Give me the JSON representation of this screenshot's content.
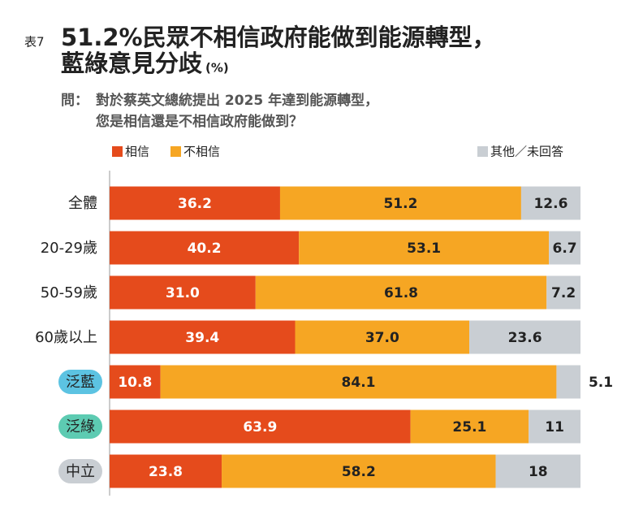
{
  "chart_data": {
    "type": "stacked_bar_horizontal",
    "table_label": "表7",
    "title": [
      "51.2%民眾不相信政府能做到能源轉型，",
      "藍綠意見分歧"
    ],
    "unit": "(%)",
    "question_label": "問：",
    "question": [
      "對於蔡英文總統提出 2025 年達到能源轉型，",
      "您是相信還是不相信政府能做到？"
    ],
    "categories": [
      "全體",
      "20-29歲",
      "50-59歲",
      "60歲以上",
      "泛藍",
      "泛綠",
      "中立"
    ],
    "series": [
      {
        "name": "相信",
        "color": "#e54b1c",
        "values": [
          36.2,
          40.2,
          31.0,
          39.4,
          10.8,
          63.9,
          23.8
        ],
        "value_labels": [
          "36.2",
          "40.2",
          "31.0",
          "39.4",
          "10.8",
          "63.9",
          "23.8"
        ]
      },
      {
        "name": "不相信",
        "color": "#f6a623",
        "values": [
          51.2,
          53.1,
          61.8,
          37.0,
          84.1,
          25.1,
          58.2
        ],
        "value_labels": [
          "51.2",
          "53.1",
          "61.8",
          "37.0",
          "84.1",
          "25.1",
          "58.2"
        ]
      },
      {
        "name": "其他／未回答",
        "color": "#c9ced3",
        "values": [
          12.6,
          6.7,
          7.2,
          23.6,
          5.1,
          11,
          18
        ],
        "value_labels": [
          "12.6",
          "6.7",
          "7.2",
          "23.6",
          "5.1",
          "11",
          "18"
        ]
      }
    ],
    "xlim": [
      0,
      100
    ]
  }
}
